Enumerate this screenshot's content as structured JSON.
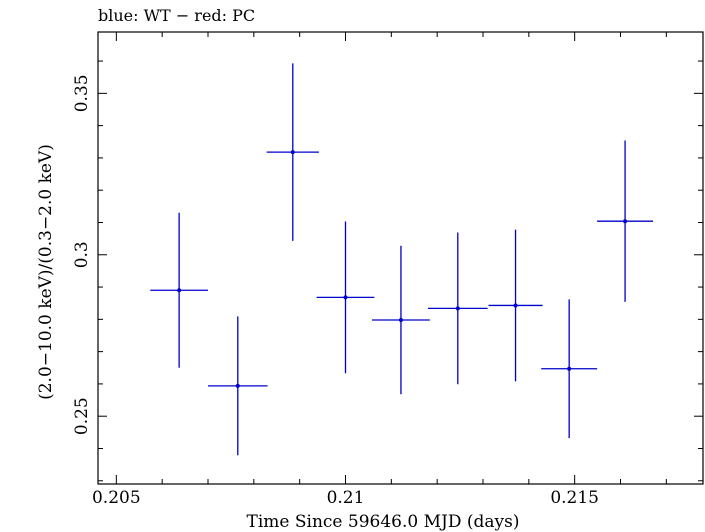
{
  "chart_data": {
    "type": "scatter",
    "title": "blue: WT − red: PC",
    "xlabel": "Time Since 59646.0 MJD (days)",
    "ylabel": "(2.0−10.0 keV)/(0.3−2.0 keV)",
    "xlim": [
      0.2046,
      0.2178
    ],
    "ylim": [
      0.229,
      0.369
    ],
    "x_ticks": [
      0.205,
      0.21,
      0.215
    ],
    "x_tick_labels": [
      "0.205",
      "0.21",
      "0.215"
    ],
    "y_ticks": [
      0.25,
      0.3,
      0.35
    ],
    "y_tick_labels": [
      "0.25",
      "0.3",
      "0.35"
    ],
    "series": [
      {
        "name": "WT",
        "color": "#0000cc",
        "points": [
          {
            "x": 0.20637,
            "xerr": 0.00063,
            "y": 0.289,
            "yerr": 0.024
          },
          {
            "x": 0.20765,
            "xerr": 0.00065,
            "y": 0.2594,
            "yerr": 0.0215
          },
          {
            "x": 0.20885,
            "xerr": 0.00057,
            "y": 0.3318,
            "yerr": 0.0275
          },
          {
            "x": 0.21,
            "xerr": 0.00063,
            "y": 0.2868,
            "yerr": 0.0235
          },
          {
            "x": 0.21121,
            "xerr": 0.00063,
            "y": 0.2798,
            "yerr": 0.023
          },
          {
            "x": 0.21245,
            "xerr": 0.00065,
            "y": 0.2834,
            "yerr": 0.0235
          },
          {
            "x": 0.21371,
            "xerr": 0.00059,
            "y": 0.2843,
            "yerr": 0.0235
          },
          {
            "x": 0.21488,
            "xerr": 0.00061,
            "y": 0.2647,
            "yerr": 0.0215
          },
          {
            "x": 0.2161,
            "xerr": 0.00061,
            "y": 0.3104,
            "yerr": 0.025
          }
        ]
      }
    ]
  }
}
